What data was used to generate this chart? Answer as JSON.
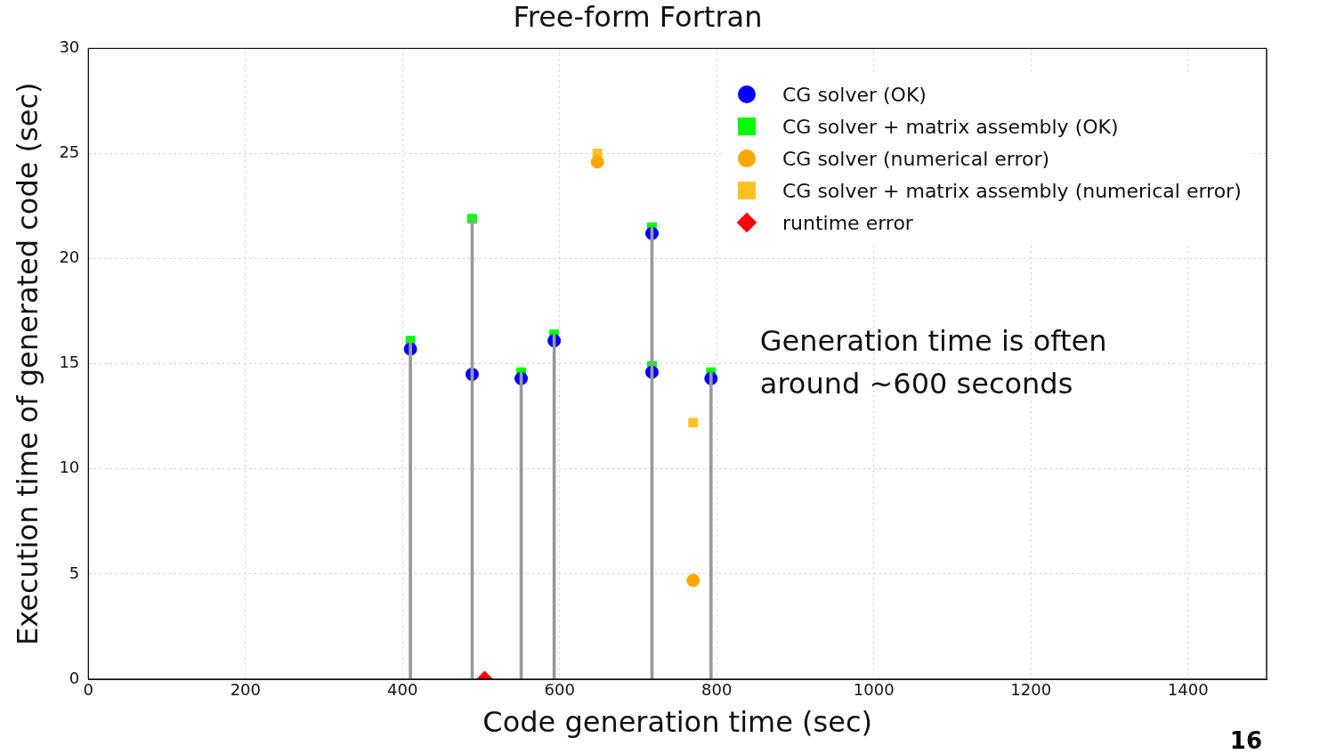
{
  "chart_data": {
    "type": "scatter",
    "title": "Free-form Fortran",
    "xlabel": "Code generation time (sec)",
    "ylabel": "Execution time of generated code (sec)",
    "xlim": [
      0,
      1500
    ],
    "xticks": [
      0,
      200,
      400,
      600,
      800,
      1000,
      1200,
      1400
    ],
    "ylim": [
      0,
      30
    ],
    "yticks": [
      0,
      5,
      10,
      15,
      20,
      25,
      30
    ],
    "grid": true,
    "legend": "top right",
    "series": [
      {
        "type": "bar",
        "color": "#999999",
        "x": [
          410,
          488.6,
          551,
          593,
          717.5,
          792.7
        ],
        "values": [
          16.1,
          21.9,
          14.6,
          16.4,
          21.5,
          14.6
        ]
      },
      {
        "name": "CG solver (OK)",
        "color": "#0000ff",
        "marker": "circle",
        "x": [
          410,
          488.6,
          551,
          593,
          717.5,
          717.5,
          792.7
        ],
        "values": [
          15.7,
          14.5,
          14.3,
          16.1,
          21.2,
          14.6,
          14.3
        ]
      },
      {
        "name": "CG solver + matrix assembly (OK)",
        "color": "#00ff00",
        "marker": "square",
        "x": [
          410,
          488.6,
          551,
          593,
          717.5,
          717.5,
          792.7
        ],
        "values": [
          16.1,
          21.9,
          14.6,
          16.4,
          21.5,
          14.9,
          14.6
        ]
      },
      {
        "name": "CG solver (numerical error)",
        "color": "#ffa500",
        "marker": "circle",
        "x": [
          648,
          770
        ],
        "values": [
          24.6,
          4.7
        ]
      },
      {
        "name": "CG solver + matrix assembly (numerical error)",
        "color": "#ffc125",
        "marker": "square",
        "x": [
          648,
          770
        ],
        "values": [
          25.0,
          12.2
        ]
      },
      {
        "name": "runtime error",
        "color": "#ff0000",
        "marker": "diamond",
        "x": [
          504.5
        ],
        "values": [
          0
        ]
      }
    ],
    "annotations": [
      "Generation time is often around ~600 seconds",
      "16"
    ]
  }
}
